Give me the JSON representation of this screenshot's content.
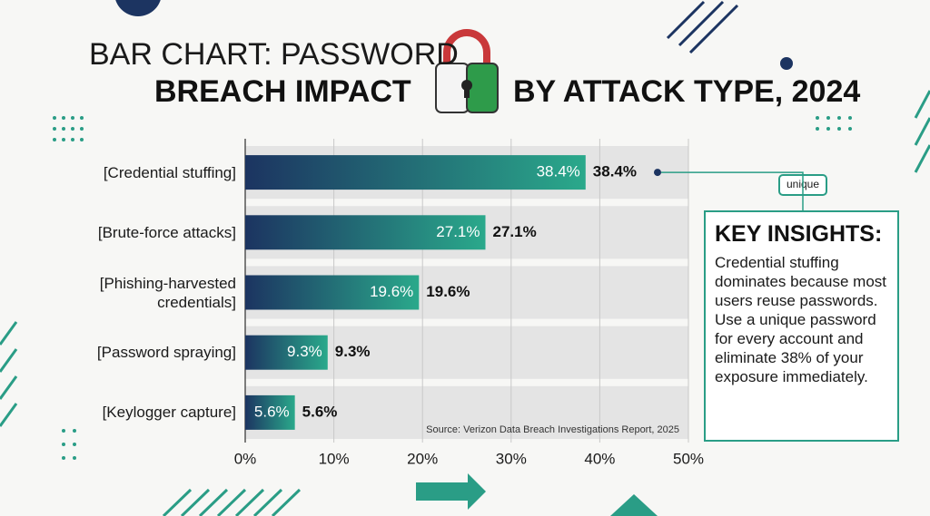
{
  "chart_data": {
    "type": "bar",
    "orientation": "horizontal",
    "title_lines": [
      "BAR CHART: PASSWORD",
      "BREACH IMPACT",
      "BY ATTACK TYPE, 2024"
    ],
    "categories": [
      "[Credential stuffing]",
      "[Brute-force attacks]",
      "[Phishing-harvested credentials]",
      "[Password spraying]",
      "[Keylogger capture]"
    ],
    "values": [
      38.4,
      27.1,
      19.6,
      9.3,
      5.6
    ],
    "value_labels": [
      "38.4%",
      "27.1%",
      "19.6%",
      "9.3%",
      "5.6%"
    ],
    "gradient": [
      "#1c3461",
      "#2aa98b"
    ],
    "xlim": [
      0,
      50
    ],
    "xticks": [
      {
        "value": 0,
        "label": "0%"
      },
      {
        "value": 10,
        "label": "10%"
      },
      {
        "value": 20,
        "label": "20%"
      },
      {
        "value": 30,
        "label": "30%"
      },
      {
        "value": 40,
        "label": "40%"
      },
      {
        "value": 50,
        "label": "50%"
      }
    ],
    "grid": true,
    "source": "Source: Verizon Data Breach Investigations Report, 2025",
    "icon_label": "unique",
    "insights": {
      "title": "KEY INSIGHTS:",
      "text": "Credential stuffing dominates because most users reuse passwords. Use a unique password for every account and eliminate 38% of your exposure immediately."
    }
  }
}
